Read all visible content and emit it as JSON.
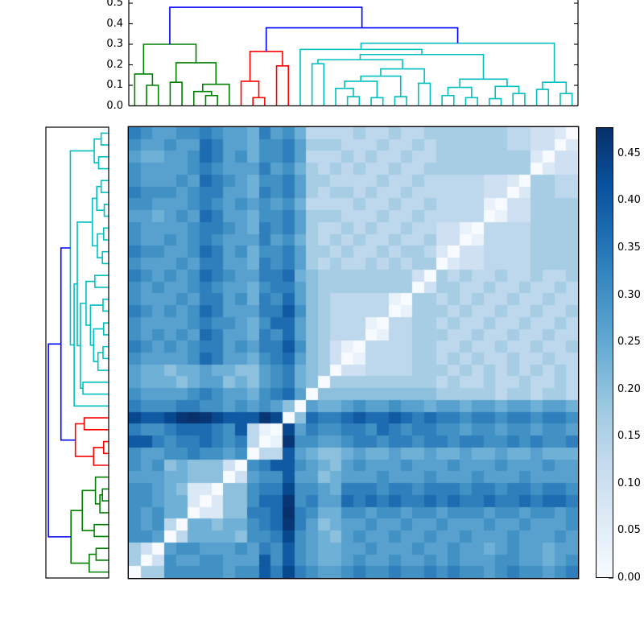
{
  "figure": {
    "background": "#ffffff"
  },
  "top_dendrogram": {
    "yticks": [
      "0.0",
      "0.1",
      "0.2",
      "0.3",
      "0.4",
      "0.5"
    ],
    "ymax": 0.5
  },
  "colorbar": {
    "ticks": [
      "0.00",
      "0.05",
      "0.10",
      "0.15",
      "0.20",
      "0.25",
      "0.30",
      "0.35",
      "0.40",
      "0.45"
    ],
    "vmax": 0.478,
    "colormap": "Blues"
  },
  "link_colors": {
    "g": "#008000",
    "r": "#ff0000",
    "c": "#00bfbf",
    "b": "#0000ff"
  },
  "chart_data": {
    "type": "heatmap",
    "subtype": "hierarchically-clustered distance matrix with dendrograms",
    "n": 38,
    "clusters": {
      "green_leaves": [
        0,
        8
      ],
      "red_leaves": [
        9,
        13
      ],
      "cyan_leaves": [
        14,
        37
      ]
    },
    "value_scale": 0.0334,
    "matrix_encoding": "each row is 38 hex digits; cell value = digit * value_scale; rows are in leaf order 0..37; displayed rows are leaf 37 (top) .. leaf 0 (bottom), columns leaf 0 (left) .. 37 (right); diagonal = 0 (white anti-diagonal on screen)",
    "matrix_hex_rows_leaf_order": [
      "05599999899cada9889a99a99a9a9989a9989a",
      "50398899888c9c987789889889898889988789",
      "53089988898a9c987788988898898878988788",
      "998047777699ad987689889889889888988898",
      "98940776779abea86788988988988898898889",
      "9897702266aabfa97799899899899989989989",
      "99877202669bbe9a88bababaababaabaababba",
      "99876220669aad9987aaa9aa9aaa9aa9aa9aa9",
      "8887766603899c886788898889888988898888",
      "98967666309acc987689888988898889888988",
      "98899a9989044c876678778778778778778777",
      "cca9aaba9a401e99889aa9aa9aa9aa99a9a99a",
      "a99abbba9c410d8a99aa9ba9aa998998998998",
      "dccdefedccced06baabcbbcbabaa9aa9aa9aa9",
      "a999aa99898986087789889887887887887887",
      "988889a98879ab806666666666555554554554",
      "8777678867689a760555555555454454454454",
      "8776778776689a765033444455545454545454",
      "988889ba8879ab865301444455454544544544",
      "a98989aa898aac965310444455445445445445",
      "989898ba887a9b865444014455544544544544",
      "988889a99879bb865444104455454454454454",
      "a98989ba888aac965444440155545445445445",
      "988898aa897a9b865444441055454544544544",
      "989889a98879aa865555555503554454454454",
      "a98989ba988aab765555555530545445445445",
      "988898aa887a9a854544545455023344445555",
      "a99889ba89799a855454454554203344445555",
      "988989a9888a89754545445445330144445555",
      "988889aa987a9a854454544544331044445555",
      "887898ba88799a855544454454444401335555",
      "998889a9898989744445445445444410335555",
      "a99989aa887a9a854554544544444433025544",
      "988898ba98799a855444454454444433205544",
      "988889a9888a89754545445445555555550233",
      "877889ba89799a844454544544555555552033",
      "988988ba88799a855544454454555555443302",
      "a98899a9887a89744445445445555555443320"
    ],
    "tree_merges": [
      [
        1,
        2,
        0.1,
        "g"
      ],
      [
        0,
        "m0",
        0.155,
        "g"
      ],
      [
        3,
        4,
        0.115,
        "g"
      ],
      [
        6,
        7,
        0.05,
        "g"
      ],
      [
        5,
        "m3",
        0.07,
        "g"
      ],
      [
        "m4",
        8,
        0.105,
        "g"
      ],
      [
        "m2",
        "m5",
        0.21,
        "g"
      ],
      [
        "m1",
        "m6",
        0.3,
        "g"
      ],
      [
        10,
        11,
        0.04,
        "r"
      ],
      [
        9,
        "m8",
        0.12,
        "r"
      ],
      [
        12,
        13,
        0.195,
        "r"
      ],
      [
        "m9",
        "m10",
        0.265,
        "r"
      ],
      [
        15,
        16,
        0.205,
        "c"
      ],
      [
        18,
        19,
        0.045,
        "c"
      ],
      [
        17,
        "m13",
        0.085,
        "c"
      ],
      [
        20,
        21,
        0.04,
        "c"
      ],
      [
        "m14",
        "m15",
        0.12,
        "c"
      ],
      [
        22,
        23,
        0.045,
        "c"
      ],
      [
        "m16",
        "m17",
        0.145,
        "c"
      ],
      [
        24,
        25,
        0.11,
        "c"
      ],
      [
        "m18",
        "m19",
        0.18,
        "c"
      ],
      [
        "m12",
        "m20",
        0.225,
        "c"
      ],
      [
        26,
        27,
        0.05,
        "c"
      ],
      [
        28,
        29,
        0.04,
        "c"
      ],
      [
        "m22",
        "m23",
        0.09,
        "c"
      ],
      [
        30,
        31,
        0.035,
        "c"
      ],
      [
        32,
        33,
        0.06,
        "c"
      ],
      [
        "m25",
        "m26",
        0.095,
        "c"
      ],
      [
        "m24",
        "m27",
        0.13,
        "c"
      ],
      [
        "m21",
        "m28",
        0.25,
        "c"
      ],
      [
        14,
        "m29",
        0.275,
        "c"
      ],
      [
        34,
        35,
        0.08,
        "c"
      ],
      [
        36,
        37,
        0.06,
        "c"
      ],
      [
        "m31",
        "m32",
        0.115,
        "c"
      ],
      [
        "m30",
        "m33",
        0.305,
        "c"
      ],
      [
        "m11",
        "m34",
        0.38,
        "b"
      ],
      [
        "m7",
        "m35",
        0.48,
        "b"
      ]
    ],
    "dendrogram_axis_ticks": [
      "0.0",
      "0.1",
      "0.2",
      "0.3",
      "0.4",
      "0.5"
    ],
    "colorbar_ticks": [
      "0.00",
      "0.05",
      "0.10",
      "0.15",
      "0.20",
      "0.25",
      "0.30",
      "0.35",
      "0.40",
      "0.45"
    ],
    "colormap_stops": [
      [
        0.0,
        "#f7fbff"
      ],
      [
        0.125,
        "#deebf7"
      ],
      [
        0.25,
        "#c6dbef"
      ],
      [
        0.375,
        "#9ecae1"
      ],
      [
        0.5,
        "#6baed6"
      ],
      [
        0.625,
        "#4292c6"
      ],
      [
        0.75,
        "#2171b5"
      ],
      [
        0.875,
        "#08519c"
      ],
      [
        1.0,
        "#08306b"
      ]
    ]
  }
}
